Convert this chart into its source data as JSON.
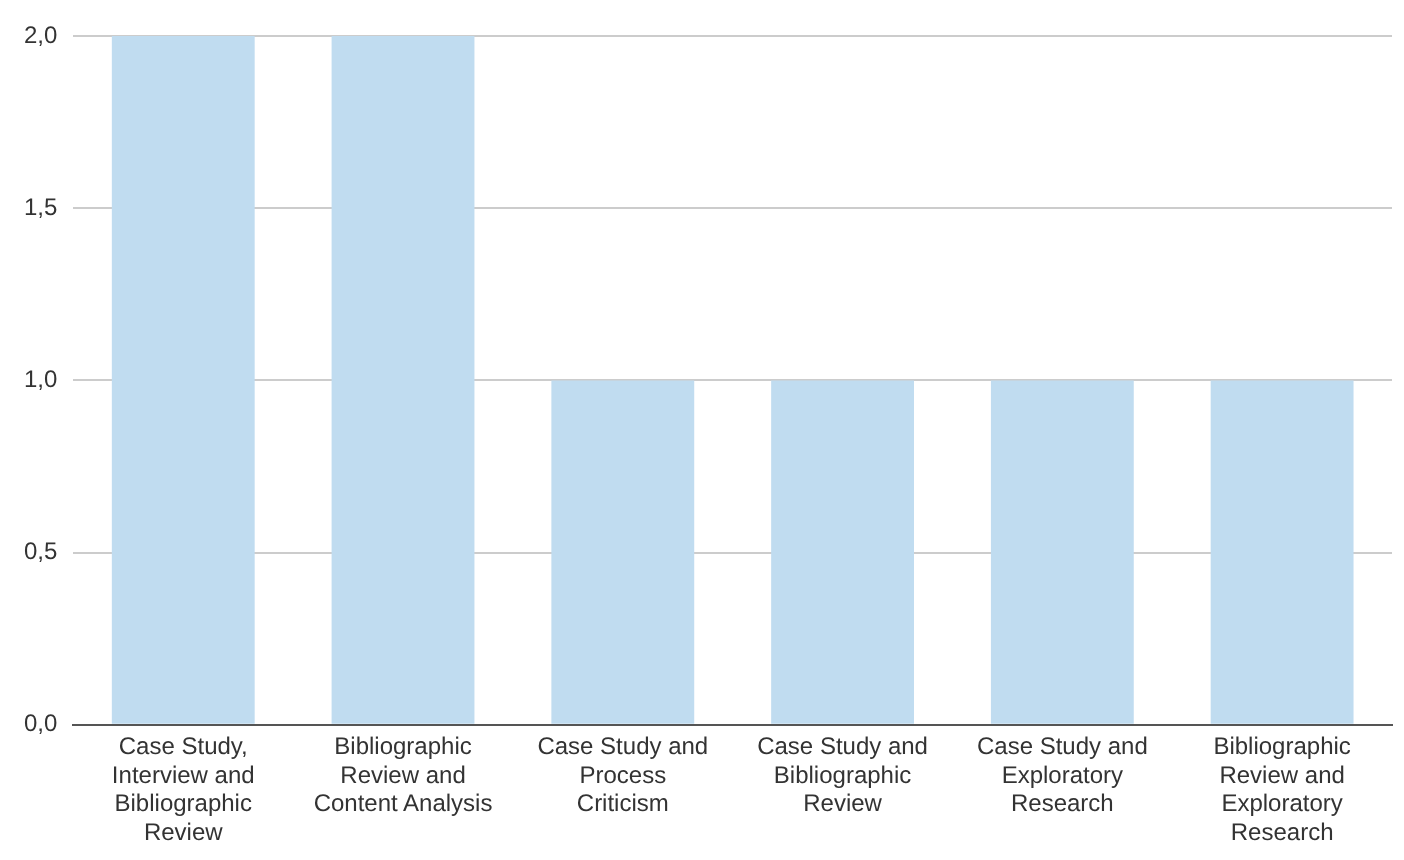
{
  "chart_data": {
    "type": "bar",
    "categories": [
      "Case Study, Interview and Bibliographic Review",
      "Bibliographic Review and Content Analysis",
      "Case Study and Process Criticism",
      "Case Study and Bibliographic Review",
      "Case Study and Exploratory Research",
      "Bibliographic Review and Exploratory Research"
    ],
    "values": [
      2,
      2,
      1,
      1,
      1,
      1
    ],
    "color": "#c0dcf0",
    "ylim": [
      0,
      2
    ],
    "yticks": [
      {
        "value": 0,
        "label": "0,0"
      },
      {
        "value": 0.5,
        "label": "0,5"
      },
      {
        "value": 1,
        "label": "1,0"
      },
      {
        "value": 1.5,
        "label": "1,5"
      },
      {
        "value": 2,
        "label": "2,0"
      }
    ],
    "grid": "y",
    "legend": false
  }
}
